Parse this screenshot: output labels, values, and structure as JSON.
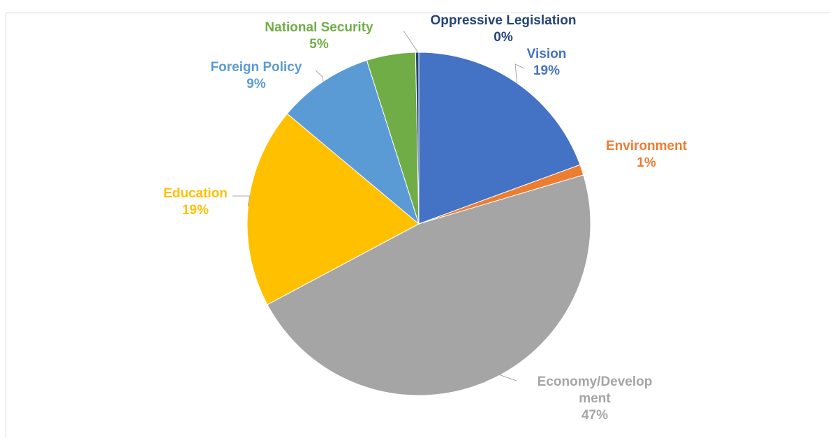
{
  "chart_data": {
    "type": "pie",
    "title": "",
    "start_angle_deg": 0,
    "direction": "clockwise",
    "slices": [
      {
        "label": "Vision",
        "value": 19.4,
        "display": "19%",
        "color": "#4472C4",
        "label_color": "#4472C4"
      },
      {
        "label": "Environment",
        "value": 1.0,
        "display": "1%",
        "color": "#ED7D31",
        "label_color": "#ED7D31"
      },
      {
        "label": "Economy/Development",
        "value": 46.8,
        "display": "47%",
        "color": "#A5A5A5",
        "label_color": "#A5A5A5"
      },
      {
        "label": "Education",
        "value": 18.9,
        "display": "19%",
        "color": "#FFC000",
        "label_color": "#FFC000"
      },
      {
        "label": "Foreign Policy",
        "value": 9.0,
        "display": "9%",
        "color": "#5B9BD5",
        "label_color": "#5B9BD5"
      },
      {
        "label": "National Security",
        "value": 4.6,
        "display": "5%",
        "color": "#70AD47",
        "label_color": "#70AD47"
      },
      {
        "label": "Oppressive Legislation",
        "value": 0.3,
        "display": "0%",
        "color": "#264478",
        "label_color": "#264478"
      }
    ],
    "legend": "none",
    "data_labels": "outside-with-leader-lines"
  }
}
